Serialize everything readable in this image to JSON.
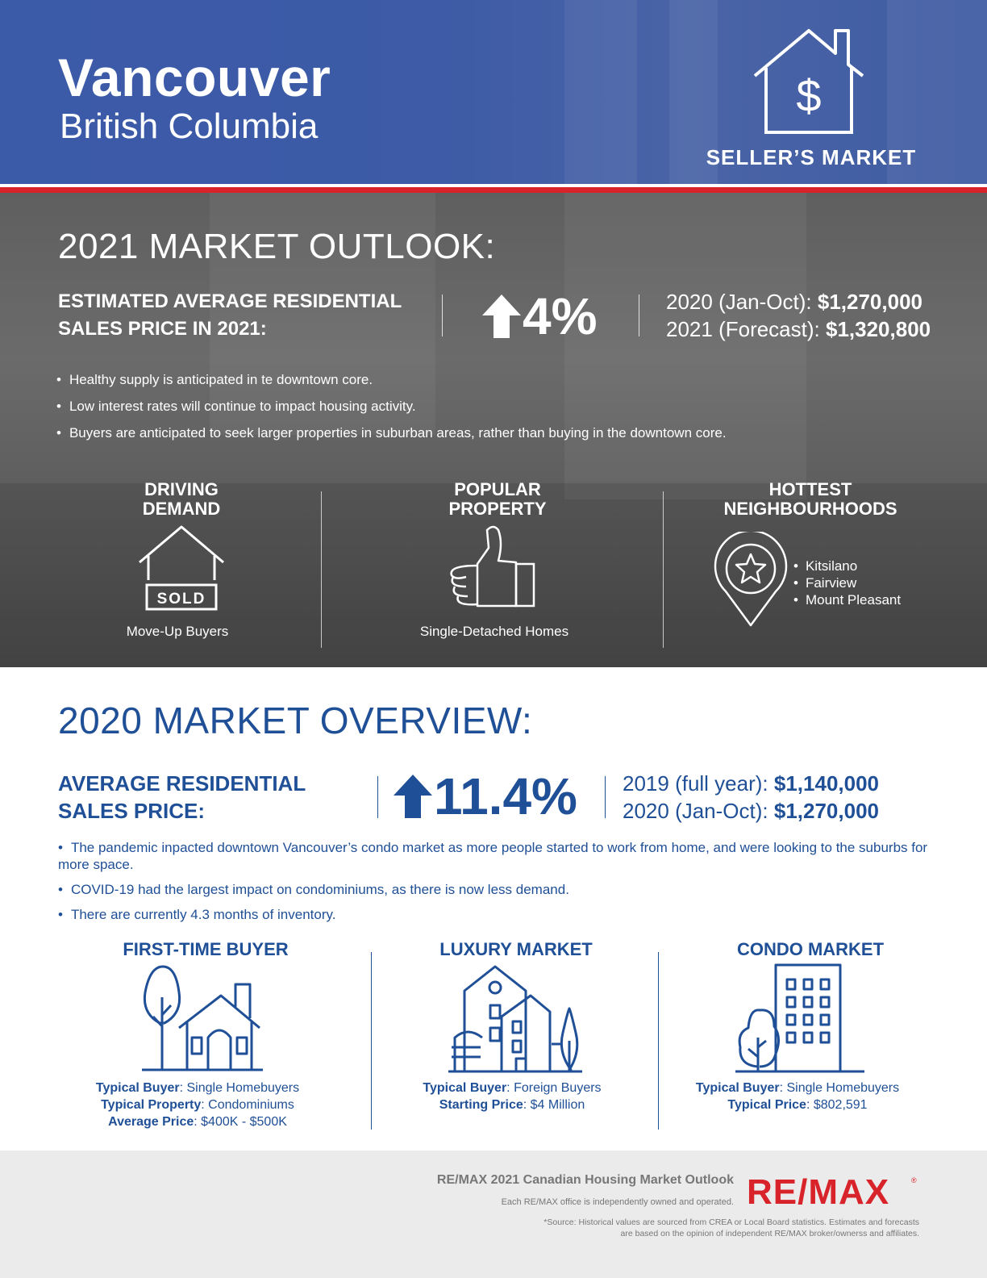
{
  "header": {
    "city": "Vancouver",
    "province": "British Columbia",
    "market_icon": "house-dollar-icon",
    "market_type": "SELLER’S MARKET"
  },
  "outlook": {
    "title": "2021 MARKET OUTLOOK:",
    "price_label_line1": "ESTIMATED AVERAGE RESIDENTIAL",
    "price_label_line2": "SALES PRICE IN 2021:",
    "change_icon": "arrow-up-icon",
    "change": "4%",
    "price_2020_label": "2020 (Jan-Oct): ",
    "price_2020_value": "$1,270,000",
    "price_2021_label": "2021 (Forecast): ",
    "price_2021_value": "$1,320,800",
    "bullets": [
      "Healthy supply is anticipated in te downtown core.",
      "Low interest rates will continue to impact housing activity.",
      "Buyers are anticipated to seek larger properties in suburban areas, rather than buying in the downtown core."
    ],
    "driving_demand": {
      "head_line1": "DRIVING",
      "head_line2": "DEMAND",
      "sign_text": "SOLD",
      "caption": "Move-Up Buyers"
    },
    "popular_property": {
      "head_line1": "POPULAR",
      "head_line2": "PROPERTY",
      "caption": "Single-Detached Homes"
    },
    "hottest_neighbourhoods": {
      "head_line1": "HOTTEST",
      "head_line2": "NEIGHBOURHOODS",
      "items": [
        "Kitsilano",
        "Fairview",
        "Mount Pleasant"
      ]
    }
  },
  "overview": {
    "title": "2020 MARKET OVERVIEW:",
    "price_label_line1": "AVERAGE RESIDENTIAL",
    "price_label_line2": "SALES PRICE:",
    "change": "11.4%",
    "price_2019_label": "2019 (full year): ",
    "price_2019_value": "$1,140,000",
    "price_2020_label": "2020 (Jan-Oct): ",
    "price_2020_value": "$1,270,000",
    "bullets": [
      "The pandemic inpacted downtown Vancouver’s condo market as more people started to work from home, and were looking to the suburbs for more space.",
      "COVID-19 had the largest impact on condominiums, as there is now less demand.",
      "There are currently 4.3 months of inventory."
    ],
    "first_time": {
      "head": "FIRST-TIME BUYER",
      "buyer_label": "Typical Buyer",
      "buyer_value": ": Single Homebuyers",
      "property_label": "Typical Property",
      "property_value": ": Condominiums",
      "price_label": "Average Price",
      "price_value": ": $400K - $500K"
    },
    "luxury": {
      "head": "LUXURY MARKET",
      "buyer_label": "Typical Buyer",
      "buyer_value": ": Foreign Buyers",
      "price_label": "Starting Price",
      "price_value": ": $4 Million"
    },
    "condo": {
      "head": "CONDO MARKET",
      "buyer_label": "Typical Buyer",
      "buyer_value": ": Single Homebuyers",
      "price_label": "Typical Price",
      "price_value": ": $802,591"
    }
  },
  "footer": {
    "title": "RE/MAX 2021 Canadian Housing Market Outlook",
    "note": "Each RE/MAX office is independently owned and operated.",
    "source_line1": "*Source: Historical values are sourced from CREA or Local Board statistics. Estimates and forecasts",
    "source_line2": "are based on the opinion of independent RE/MAX broker/ownerss and affiliates.",
    "logo_text": "RE/MAX",
    "logo_mark": "®"
  },
  "colors": {
    "brand_blue": "#1f4f96",
    "header_blue": "#3d5ba6",
    "remax_red": "#d8232a",
    "footer_gray": "#ebebeb"
  }
}
